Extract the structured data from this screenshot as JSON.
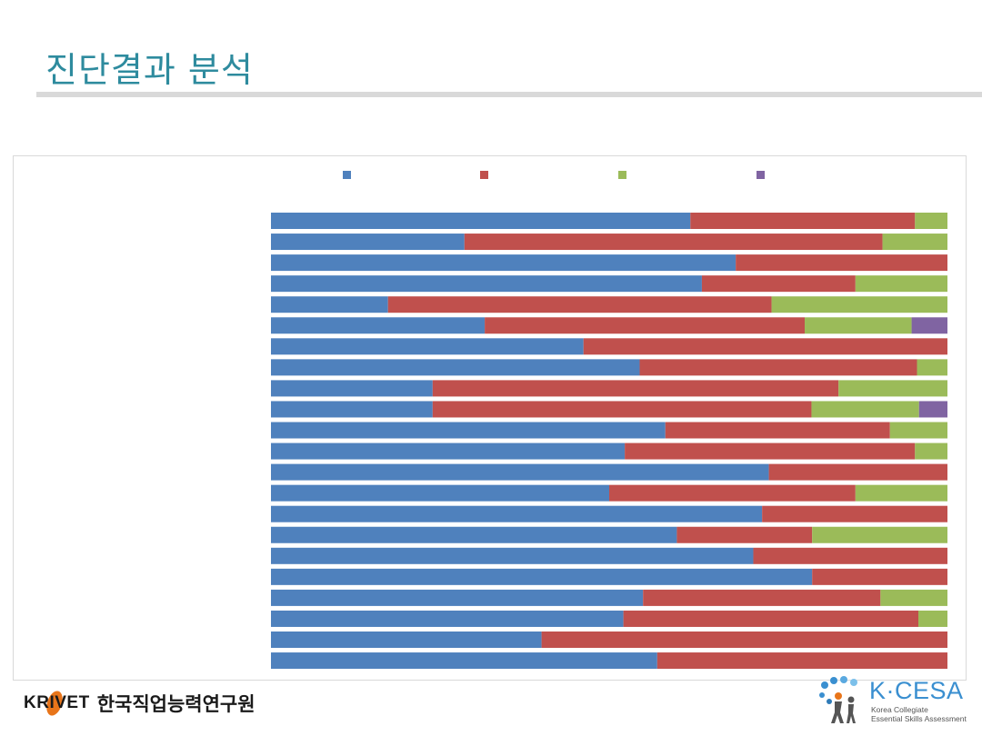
{
  "slide": {
    "title": "진단결과 분석"
  },
  "footer": {
    "krivet_logo_text": "KRIVET",
    "krivet_org_name": "한국직업능력연구원",
    "kcesa_logo_text": "K·CESA",
    "kcesa_tagline_line1": "Korea Collegiate",
    "kcesa_tagline_line2": "Essential Skills Assessment"
  },
  "chart_data": {
    "type": "bar",
    "orientation": "horizontal",
    "stacked": true,
    "percent_stacked": true,
    "title": "",
    "xlabel": "",
    "ylabel": "",
    "xlim": [
      0,
      100
    ],
    "categories": [
      "",
      "",
      "",
      "",
      "",
      "",
      "",
      "",
      "",
      "",
      "",
      "",
      "",
      "",
      "",
      "",
      "",
      "",
      "",
      "",
      "",
      ""
    ],
    "legend_position": "top",
    "grid": false,
    "series": [
      {
        "name": "",
        "color": "#4f81bd",
        "values": [
          62,
          28.6,
          68.7,
          63.7,
          17.3,
          31.6,
          46.2,
          54.5,
          23.9,
          23.9,
          58.3,
          52.3,
          73.6,
          50,
          72.6,
          60,
          71.3,
          80,
          55,
          52.1,
          40,
          57.1
        ]
      },
      {
        "name": "",
        "color": "#c0504d",
        "values": [
          33.2,
          61.8,
          31.3,
          22.7,
          56.7,
          47.3,
          53.8,
          41,
          60,
          56,
          33.2,
          42.9,
          26.4,
          36.4,
          27.4,
          20,
          28.7,
          20,
          35.1,
          43.6,
          60,
          42.9
        ]
      },
      {
        "name": "",
        "color": "#9bbb59",
        "values": [
          4.8,
          9.6,
          0,
          13.6,
          26,
          15.8,
          0,
          4.5,
          16.1,
          15.9,
          8.5,
          4.8,
          0,
          13.6,
          0,
          20,
          0,
          0,
          9.9,
          4.3,
          0,
          0
        ]
      },
      {
        "name": "",
        "color": "#8064a2",
        "values": [
          0,
          0,
          0,
          0,
          0,
          5.3,
          0,
          0,
          0,
          4.2,
          0,
          0,
          0,
          0,
          0,
          0,
          0,
          0,
          0,
          0,
          0,
          0
        ]
      }
    ]
  }
}
